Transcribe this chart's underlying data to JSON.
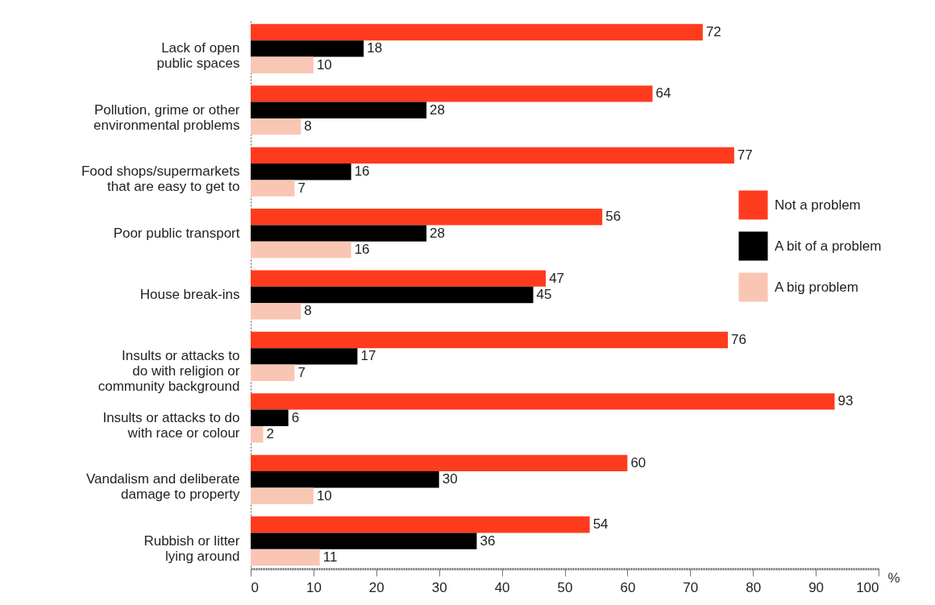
{
  "chart_data": {
    "type": "bar",
    "orientation": "horizontal",
    "categories": [
      "Lack of open\npublic spaces",
      "Pollution, grime or other\nenvironmental problems",
      "Food shops/supermarkets\nthat are easy to get to",
      "Poor public transport",
      "House break-ins",
      "Insults or attacks to\ndo with religion or\ncommunity background",
      "Insults or attacks to do\nwith race or colour",
      "Vandalism and deliberate\ndamage to property",
      "Rubbish or litter\nlying around"
    ],
    "series": [
      {
        "name": "Not a problem",
        "color": "#ff3b1e",
        "values": [
          72,
          64,
          77,
          56,
          47,
          76,
          93,
          60,
          54
        ]
      },
      {
        "name": "A bit of a problem",
        "color": "#000000",
        "values": [
          18,
          28,
          16,
          28,
          45,
          17,
          6,
          30,
          36
        ]
      },
      {
        "name": "A big problem",
        "color": "#f9c6b4",
        "values": [
          10,
          8,
          7,
          16,
          8,
          7,
          2,
          10,
          11
        ]
      }
    ],
    "xlabel": "%",
    "xlim": [
      0,
      100
    ],
    "xticks": [
      0,
      10,
      20,
      30,
      40,
      50,
      60,
      70,
      80,
      90,
      100
    ],
    "data_labels": true,
    "legend": "right",
    "grid": false
  }
}
